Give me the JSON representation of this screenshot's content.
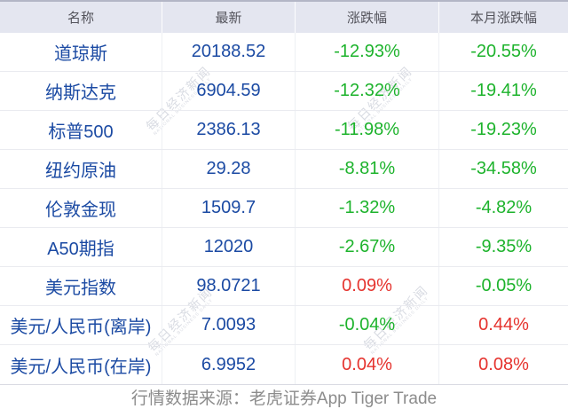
{
  "chart_data": {
    "type": "table",
    "columns": [
      "名称",
      "最新",
      "涨跌幅",
      "本月涨跌幅"
    ],
    "rows": [
      [
        "道琼斯",
        "20188.52",
        "-12.93%",
        "-20.55%"
      ],
      [
        "纳斯达克",
        "6904.59",
        "-12.32%",
        "-19.41%"
      ],
      [
        "标普500",
        "2386.13",
        "-11.98%",
        "-19.23%"
      ],
      [
        "纽约原油",
        "29.28",
        "-8.81%",
        "-34.58%"
      ],
      [
        "伦敦金现",
        "1509.7",
        "-1.32%",
        "-4.82%"
      ],
      [
        "A50期指",
        "12020",
        "-2.67%",
        "-9.35%"
      ],
      [
        "美元指数",
        "98.0721",
        "0.09%",
        "-0.05%"
      ],
      [
        "美元/人民币(离岸)",
        "7.0093",
        "-0.04%",
        "0.44%"
      ],
      [
        "美元/人民币(在岸)",
        "6.9952",
        "0.04%",
        "0.08%"
      ]
    ],
    "title": "",
    "layout_hints": {
      "change_columns": [
        2,
        3
      ],
      "color_rule": "negative values green, positive values red (CN market convention)",
      "legend": "none",
      "grid": "row and column separators on"
    }
  },
  "watermark": {
    "cn": "每日经济新闻",
    "en": "NATIONAL BUSINESS DAILY"
  },
  "footer": {
    "source_text": "行情数据来源：老虎证券App Tiger Trade"
  },
  "colors": {
    "positive_red": "#e5332e",
    "negative_green": "#1db32c",
    "value_blue": "#1b4aa3",
    "header_bg": "#e4e6f0",
    "header_fg": "#54545c",
    "watermark": "#9aa1b4"
  }
}
